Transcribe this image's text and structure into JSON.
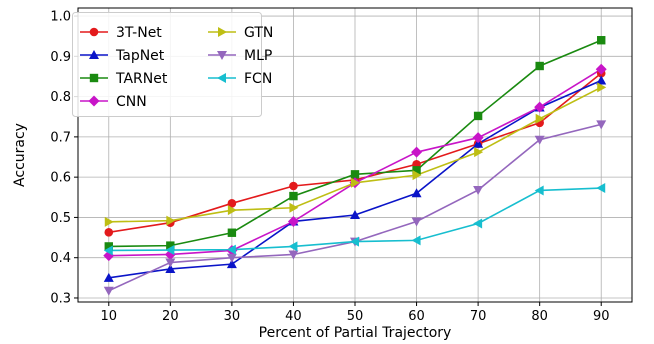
{
  "chart_data": {
    "type": "line",
    "xlabel": "Percent of Partial Trajectory",
    "ylabel": "Accuracy",
    "x": [
      10,
      20,
      30,
      40,
      50,
      60,
      70,
      80,
      90
    ],
    "xlim": [
      5,
      95
    ],
    "ylim": [
      0.29,
      1.02
    ],
    "yticks": [
      0.3,
      0.4,
      0.5,
      0.6,
      0.7,
      0.8,
      0.9,
      1.0
    ],
    "ytick_labels": [
      "0.3",
      "0.4",
      "0.5",
      "0.6",
      "0.7",
      "0.8",
      "0.9",
      "1.0"
    ],
    "xticks": [
      10,
      20,
      30,
      40,
      50,
      60,
      70,
      80,
      90
    ],
    "xtick_labels": [
      "10",
      "20",
      "30",
      "40",
      "50",
      "60",
      "70",
      "80",
      "90"
    ],
    "grid": true,
    "legend_position": "top-left",
    "series": [
      {
        "name": "3T-Net",
        "color": "#e31a1c",
        "marker": "circle",
        "values": [
          0.463,
          0.487,
          0.535,
          0.578,
          0.593,
          0.632,
          0.683,
          0.735,
          0.858
        ]
      },
      {
        "name": "TapNet",
        "color": "#0a14c8",
        "marker": "triangle-up",
        "values": [
          0.35,
          0.372,
          0.384,
          0.49,
          0.506,
          0.56,
          0.683,
          0.773,
          0.84
        ]
      },
      {
        "name": "TARNet",
        "color": "#1a8a10",
        "marker": "square",
        "values": [
          0.428,
          0.43,
          0.462,
          0.553,
          0.607,
          0.617,
          0.752,
          0.876,
          0.94
        ]
      },
      {
        "name": "CNN",
        "color": "#c815c8",
        "marker": "diamond",
        "values": [
          0.405,
          0.408,
          0.418,
          0.49,
          0.586,
          0.662,
          0.698,
          0.774,
          0.868
        ]
      },
      {
        "name": "GTN",
        "color": "#bebe14",
        "marker": "triangle-right",
        "values": [
          0.489,
          0.492,
          0.518,
          0.524,
          0.586,
          0.605,
          0.662,
          0.745,
          0.823
        ]
      },
      {
        "name": "MLP",
        "color": "#9467bd",
        "marker": "triangle-down",
        "values": [
          0.318,
          0.388,
          0.4,
          0.408,
          0.44,
          0.49,
          0.568,
          0.693,
          0.731
        ]
      },
      {
        "name": "FCN",
        "color": "#17becf",
        "marker": "triangle-left",
        "values": [
          0.418,
          0.419,
          0.42,
          0.428,
          0.44,
          0.443,
          0.485,
          0.567,
          0.573
        ]
      }
    ]
  }
}
